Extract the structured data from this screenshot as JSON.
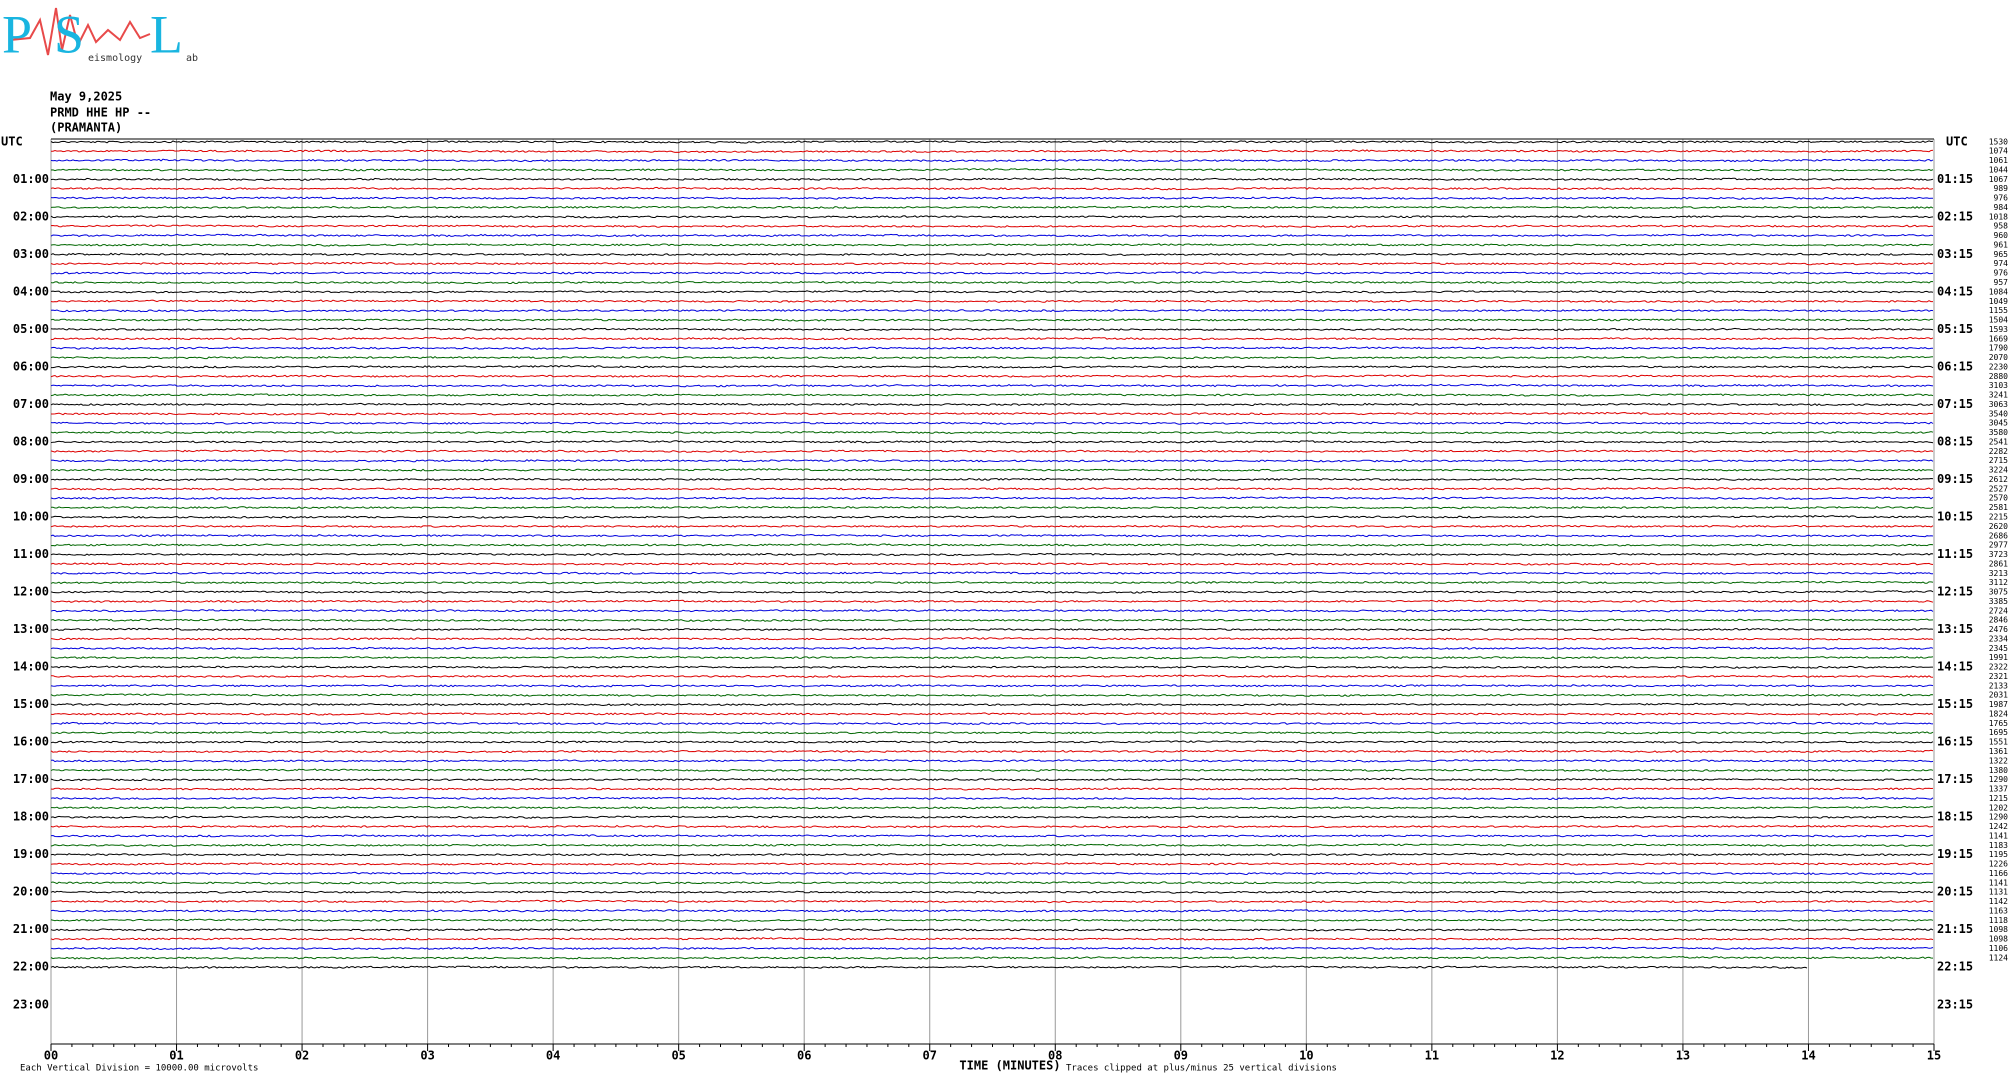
{
  "logo": {
    "letters": [
      "P",
      "S",
      "L"
    ],
    "words": [
      "eismology",
      "ab"
    ]
  },
  "header": {
    "date": "May 9,2025",
    "channel": "PRMD HHE HP --",
    "station": "(PRAMANTA)"
  },
  "left_axis": {
    "title": "UTC",
    "labels": [
      "01:00",
      "02:00",
      "03:00",
      "04:00",
      "05:00",
      "06:00",
      "07:00",
      "08:00",
      "09:00",
      "10:00",
      "11:00",
      "12:00",
      "13:00",
      "14:00",
      "15:00",
      "16:00",
      "17:00",
      "18:00",
      "19:00",
      "20:00",
      "21:00",
      "22:00",
      "23:00"
    ]
  },
  "right_axis": {
    "title": "UTC",
    "labels": [
      "01:15",
      "02:15",
      "03:15",
      "04:15",
      "05:15",
      "06:15",
      "07:15",
      "08:15",
      "09:15",
      "10:15",
      "11:15",
      "12:15",
      "13:15",
      "14:15",
      "15:15",
      "16:15",
      "17:15",
      "18:15",
      "19:15",
      "20:15",
      "21:15",
      "22:15",
      "23:15"
    ],
    "row_counts": [
      1530,
      1074,
      1061,
      1044,
      1067,
      989,
      976,
      984,
      1018,
      958,
      960,
      961,
      965,
      974,
      976,
      957,
      1084,
      1049,
      1155,
      1504,
      1593,
      1669,
      1790,
      2070,
      2230,
      2880,
      3103,
      3241,
      3063,
      3540,
      3045,
      3580,
      2541,
      2282,
      2715,
      3224,
      2612,
      2527,
      2570,
      2581,
      2215,
      2620,
      2686,
      2977,
      3723,
      2861,
      3213,
      3112,
      3075,
      3385,
      2724,
      2846,
      2476,
      2334,
      2345,
      1991,
      2322,
      2321,
      2133,
      2031,
      1987,
      1824,
      1765,
      1695,
      1551,
      1361,
      1322,
      1380,
      1290,
      1337,
      1215,
      1202,
      1290,
      1242,
      1141,
      1183,
      1195,
      1226,
      1166,
      1141,
      1131,
      1142,
      1163,
      1118,
      1098,
      1098,
      1106,
      1124
    ]
  },
  "bottom_axis": {
    "labels": [
      "00",
      "01",
      "02",
      "03",
      "04",
      "05",
      "06",
      "07",
      "08",
      "09",
      "10",
      "11",
      "12",
      "13",
      "14",
      "15"
    ],
    "title": "TIME (MINUTES)"
  },
  "notes": {
    "scale": "Each Vertical Division = 10000.00 microvolts",
    "clip": "Traces clipped at plus/minus 25 vertical divisions"
  }
}
